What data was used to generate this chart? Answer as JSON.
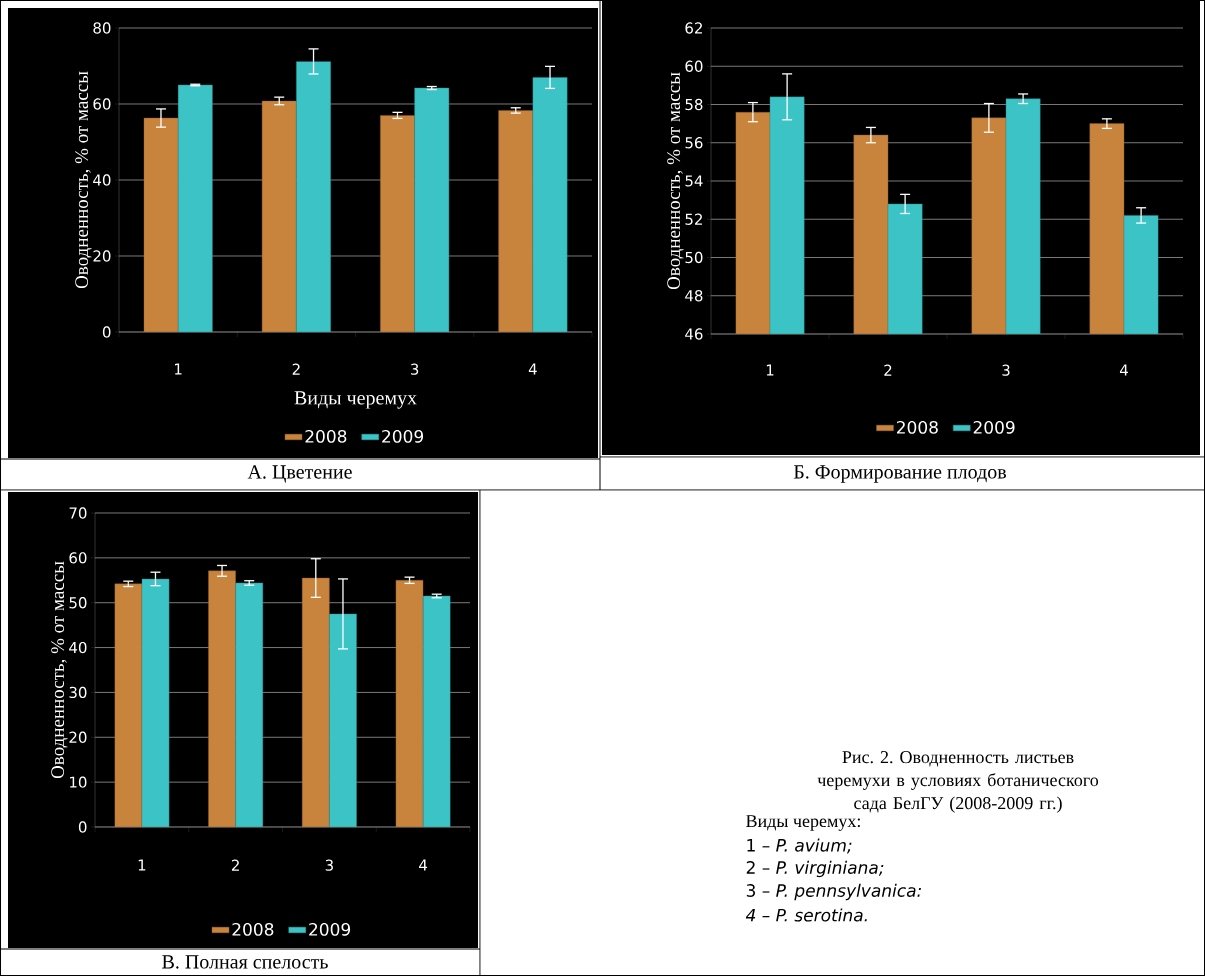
{
  "chart_data": [
    {
      "type": "bar",
      "categories": [
        "1",
        "2",
        "3",
        "4"
      ],
      "xlabel": "Виды черемух",
      "ylabel": "Оводненность, % от массы",
      "ylim": [
        0,
        80
      ],
      "yticks": [
        0,
        20,
        40,
        60,
        80
      ],
      "grid": "y",
      "legend": "bottom",
      "annotations": [
        "А. Цветение"
      ],
      "series": [
        {
          "name": "2008",
          "color": "#c8843c",
          "values": [
            56.3,
            60.8,
            57.0,
            58.3
          ],
          "errors": [
            2.4,
            1.0,
            0.8,
            0.7
          ]
        },
        {
          "name": "2009",
          "color": "#3cc3c6",
          "values": [
            65.0,
            71.2,
            64.2,
            67.0
          ],
          "errors": [
            0.2,
            3.3,
            0.4,
            2.9
          ]
        }
      ]
    },
    {
      "type": "bar",
      "categories": [
        "1",
        "2",
        "3",
        "4"
      ],
      "ylabel": "Оводненность, % от массы",
      "ylim": [
        46,
        62
      ],
      "yticks": [
        46,
        48,
        50,
        52,
        54,
        56,
        58,
        60,
        62
      ],
      "grid": "y",
      "legend": "bottom",
      "annotations": [
        "Б. Формирование плодов"
      ],
      "series": [
        {
          "name": "2008",
          "color": "#c8843c",
          "values": [
            57.6,
            56.4,
            57.3,
            57.0
          ],
          "errors": [
            0.5,
            0.4,
            0.75,
            0.25
          ]
        },
        {
          "name": "2009",
          "color": "#3cc3c6",
          "values": [
            58.4,
            52.8,
            58.3,
            52.2
          ],
          "errors": [
            1.2,
            0.5,
            0.25,
            0.4
          ]
        }
      ]
    },
    {
      "type": "bar",
      "categories": [
        "1",
        "2",
        "3",
        "4"
      ],
      "ylabel": "Оводненность, % от массы",
      "ylim": [
        0,
        70
      ],
      "yticks": [
        0,
        10,
        20,
        30,
        40,
        50,
        60,
        70
      ],
      "grid": "y",
      "legend": "bottom",
      "annotations": [
        "В. Полная спелость"
      ],
      "series": [
        {
          "name": "2008",
          "color": "#c8843c",
          "values": [
            54.2,
            57.1,
            55.5,
            55.0
          ],
          "errors": [
            0.6,
            1.2,
            4.3,
            0.7
          ]
        },
        {
          "name": "2009",
          "color": "#3cc3c6",
          "values": [
            55.3,
            54.4,
            47.5,
            51.5
          ],
          "errors": [
            1.5,
            0.5,
            7.8,
            0.4
          ]
        }
      ]
    },
    {
      "type": "other",
      "title": "Рис. 2. Оводненность листьев черемухи в условиях ботанического сада БелГУ (2008-2009 гг.)",
      "annotations": [
        "Виды черемух:",
        "1 – *P. avium;*",
        "2 – *P. virginiana;*",
        "3 – *P. pennsylvanica:*",
        "*4 – P. serotina.*"
      ]
    }
  ]
}
